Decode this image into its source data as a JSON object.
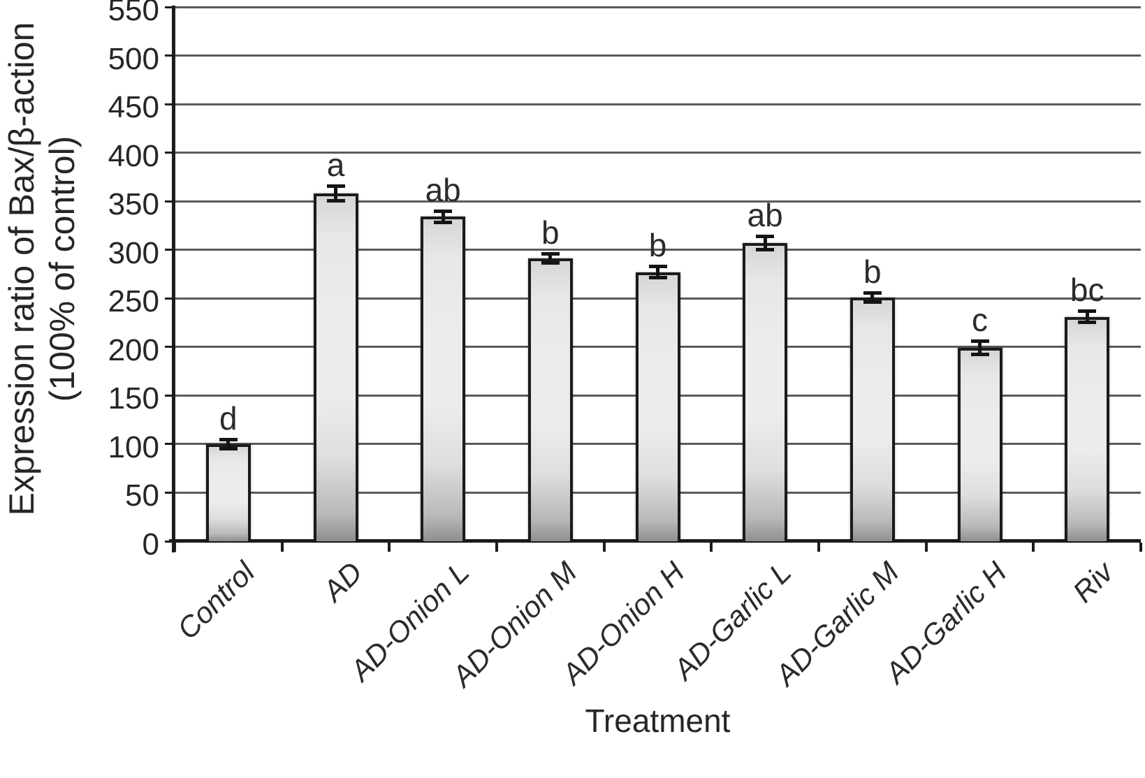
{
  "chart_data": {
    "type": "bar",
    "title": "",
    "xlabel": "Treatment",
    "ylabel_line1": "Expression ratio of Bax/β-action",
    "ylabel_line2": "(100% of control)",
    "categories": [
      "Control",
      "AD",
      "AD-Onion L",
      "AD-Onion M",
      "AD-Onion H",
      "AD-Garlic L",
      "AD-Garlic M",
      "AD-Garlic H",
      "Riv"
    ],
    "values": [
      100,
      358,
      334,
      291,
      277,
      307,
      251,
      199,
      231
    ],
    "errors": [
      5,
      8,
      6,
      5,
      6,
      7,
      5,
      7,
      6
    ],
    "sig_letters": [
      "d",
      "a",
      "ab",
      "b",
      "b",
      "ab",
      "b",
      "c",
      "bc"
    ],
    "ylim": [
      0,
      550
    ],
    "ytick_step": 50,
    "ytick_labels": [
      "0",
      "50",
      "100",
      "150",
      "200",
      "250",
      "300",
      "350",
      "400",
      "450",
      "500",
      "550"
    ],
    "grid": "horizontal-gridlines-on",
    "legend": "none",
    "bar_style": "light-gray-gradient-with-dark-border",
    "error_bars": "plus-minus-caps"
  },
  "style": {
    "background": "#ffffff",
    "text_color": "#262626",
    "gridline_color": "#5a5a5a",
    "axis_color": "#1c1c1c",
    "bar_fill_light": "#ececec",
    "bar_fill_dark": "#8f8f8f",
    "bar_border": "#1b1b1b",
    "error_bar_color": "#141414"
  }
}
